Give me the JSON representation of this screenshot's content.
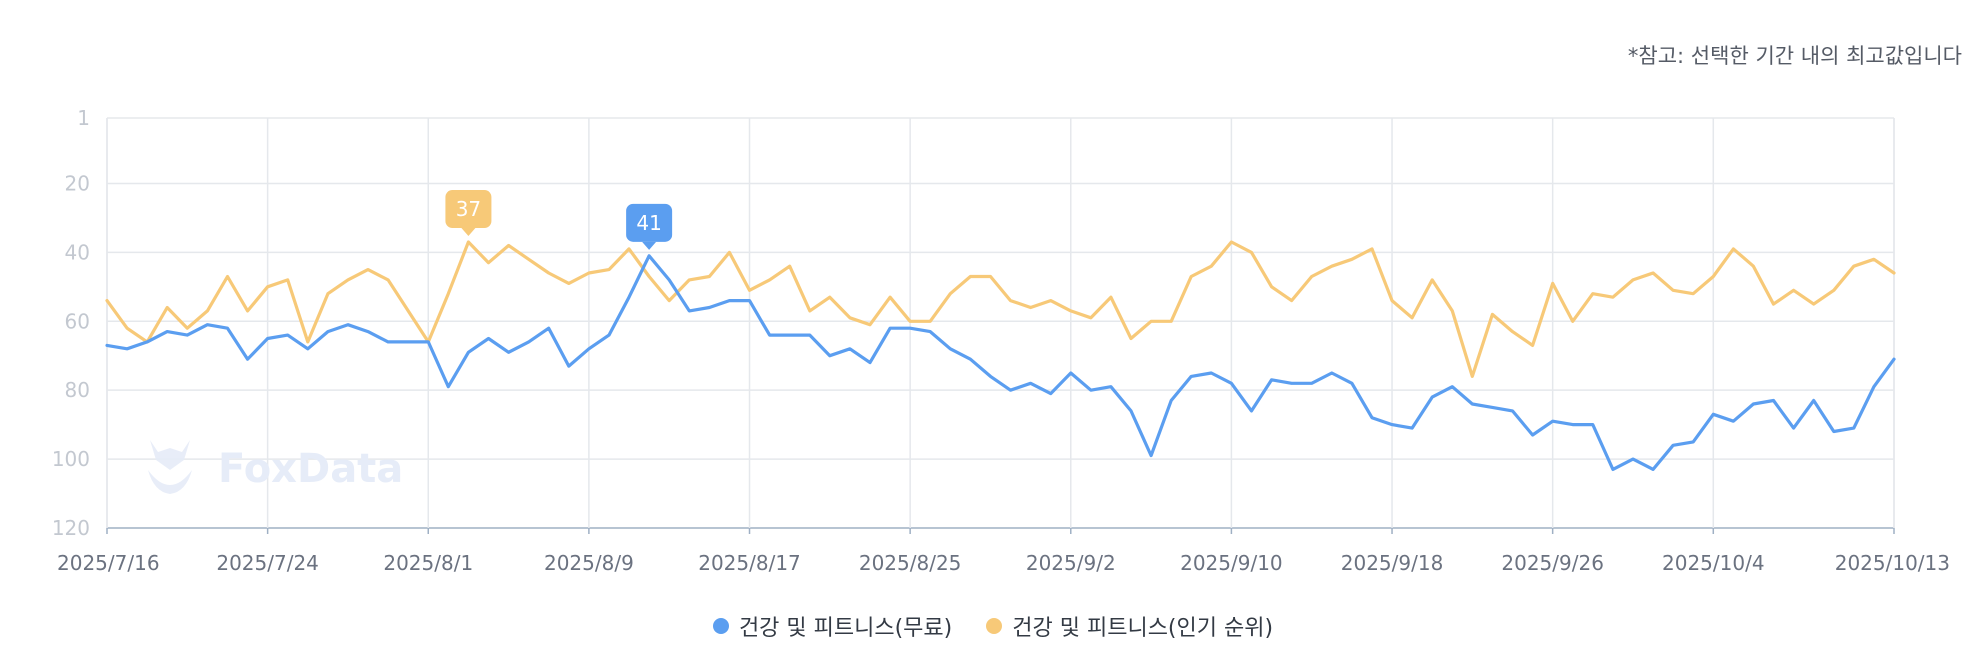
{
  "note": "*참고: 선택한 기간 내의 최고값입니다",
  "watermark": "FoxData",
  "colors": {
    "free": "#5b9ef0",
    "popular": "#f7c978",
    "grid": "#e5e8ec",
    "axis": "#9fb0c4"
  },
  "chart_data": {
    "type": "line",
    "y_reversed": true,
    "ylim": [
      1,
      120
    ],
    "y_ticks": [
      1,
      20,
      40,
      60,
      80,
      100,
      120
    ],
    "x_tick_labels": [
      "2025/7/16",
      "2025/7/24",
      "2025/8/1",
      "2025/8/9",
      "2025/8/17",
      "2025/8/25",
      "2025/9/2",
      "2025/9/10",
      "2025/9/18",
      "2025/9/26",
      "2025/10/4",
      "2025/10/13"
    ],
    "x_tick_index": [
      0,
      8,
      16,
      24,
      32,
      40,
      48,
      56,
      64,
      72,
      80,
      89
    ],
    "grid": true,
    "legend_position": "bottom",
    "series": [
      {
        "name": "건강 및 피트니스(무료)",
        "color": "#5b9ef0",
        "values": [
          67,
          68,
          66,
          63,
          64,
          61,
          62,
          71,
          65,
          64,
          68,
          63,
          61,
          63,
          66,
          66,
          66,
          79,
          69,
          65,
          69,
          66,
          62,
          73,
          68,
          64,
          53,
          41,
          48,
          57,
          56,
          54,
          54,
          64,
          64,
          64,
          70,
          68,
          72,
          62,
          62,
          63,
          68,
          71,
          76,
          80,
          78,
          81,
          75,
          80,
          79,
          86,
          99,
          83,
          76,
          75,
          78,
          86,
          77,
          78,
          78,
          75,
          78,
          88,
          90,
          91,
          82,
          79,
          84,
          85,
          86,
          93,
          89,
          90,
          90,
          103,
          100,
          103,
          96,
          95,
          87,
          89,
          84,
          83,
          91,
          83,
          92,
          91,
          79,
          71
        ],
        "peak_label": "41",
        "peak_index": 27
      },
      {
        "name": "건강 및 피트니스(인기 순위)",
        "color": "#f7c978",
        "values": [
          54,
          62,
          66,
          56,
          62,
          57,
          47,
          57,
          50,
          48,
          66,
          52,
          48,
          45,
          48,
          57,
          66,
          52,
          37,
          43,
          38,
          42,
          46,
          49,
          46,
          45,
          39,
          47,
          54,
          48,
          47,
          40,
          51,
          48,
          44,
          57,
          53,
          59,
          61,
          53,
          60,
          60,
          52,
          47,
          47,
          54,
          56,
          54,
          57,
          59,
          53,
          65,
          60,
          60,
          47,
          44,
          37,
          40,
          50,
          54,
          47,
          44,
          42,
          39,
          54,
          59,
          48,
          57,
          76,
          58,
          63,
          67,
          49,
          60,
          52,
          53,
          48,
          46,
          51,
          52,
          47,
          39,
          44,
          55,
          51,
          55,
          51,
          44,
          42,
          46
        ],
        "peak_label": "37",
        "peak_index": 18
      }
    ]
  }
}
